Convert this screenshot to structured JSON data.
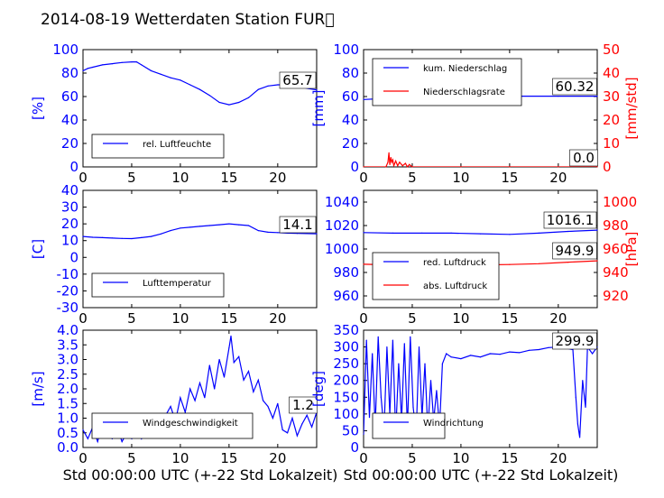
{
  "title": "2014-08-19 Wetterdaten Station FUR\u0000",
  "xlabel": "Std 00:00:00 UTC (+-22 Std Lokalzeit)",
  "colors": {
    "blue": "#0000ff",
    "red": "#ff0000",
    "black": "#000000"
  },
  "chart_data": [
    {
      "id": "humidity",
      "type": "line",
      "xlim": [
        0,
        24
      ],
      "ylim": [
        0,
        100
      ],
      "xticks": [
        0,
        5,
        10,
        15,
        20
      ],
      "yticks": [
        0,
        20,
        40,
        60,
        80,
        100
      ],
      "ylabel": "[%]",
      "legend": [
        "rel. Luftfeuchte"
      ],
      "legend_placement": "lower-left",
      "value_label": "65.7",
      "series": [
        {
          "name": "rel. Luftfeuchte",
          "color": "#0000ff",
          "x": [
            0,
            0.5,
            1,
            2,
            3,
            4,
            5,
            5.5,
            6,
            7,
            8,
            9,
            10,
            11,
            12,
            13,
            14,
            15,
            16,
            17,
            18,
            19,
            20,
            21,
            22,
            23,
            24
          ],
          "y": [
            82,
            84,
            85,
            87,
            88,
            89,
            89.5,
            89.5,
            87,
            82,
            79,
            76,
            74,
            70,
            66,
            61,
            55,
            53,
            55,
            59,
            66,
            69,
            70,
            70,
            69,
            67,
            65.7
          ]
        }
      ]
    },
    {
      "id": "precipitation",
      "type": "line",
      "xlim": [
        0,
        24
      ],
      "ylim": [
        0,
        100
      ],
      "y2lim": [
        0,
        50
      ],
      "xticks": [
        0,
        5,
        10,
        15,
        20
      ],
      "yticks": [
        0,
        20,
        40,
        60,
        80,
        100
      ],
      "y2ticks": [
        0,
        10,
        20,
        30,
        40,
        50
      ],
      "ylabel": "[mm]",
      "y2label": "[mm/std]",
      "legend": [
        "kum. Niederschlag",
        "Niederschlagsrate"
      ],
      "legend_placement": "upper-left",
      "value_labels": [
        "60.32",
        "0.0"
      ],
      "series": [
        {
          "name": "kum. Niederschlag",
          "color": "#0000ff",
          "axis": "left",
          "x": [
            0,
            2.5,
            5,
            10,
            15,
            20,
            24
          ],
          "y": [
            57.5,
            58.5,
            60.0,
            60.3,
            60.3,
            60.32,
            60.32
          ]
        },
        {
          "name": "Niederschlagsrate",
          "color": "#ff0000",
          "axis": "right",
          "x": [
            0,
            2.3,
            2.5,
            2.6,
            2.7,
            2.8,
            2.9,
            3.0,
            3.1,
            3.3,
            3.5,
            3.7,
            4.0,
            4.3,
            4.5,
            4.7,
            5.0,
            10,
            15,
            20,
            24
          ],
          "y": [
            0,
            0,
            2,
            6,
            1,
            4,
            2,
            3,
            0.5,
            2.5,
            0.5,
            2,
            0.5,
            1.5,
            0,
            1,
            0,
            0,
            0,
            0,
            0
          ]
        }
      ]
    },
    {
      "id": "temperature",
      "type": "line",
      "xlim": [
        0,
        24
      ],
      "ylim": [
        -30,
        40
      ],
      "xticks": [
        0,
        5,
        10,
        15,
        20
      ],
      "yticks": [
        -30,
        -20,
        -10,
        0,
        10,
        20,
        30,
        40
      ],
      "ylabel": "[C]",
      "legend": [
        "Lufttemperatur"
      ],
      "legend_placement": "lower-left",
      "value_label": "14.1",
      "series": [
        {
          "name": "Lufttemperatur",
          "color": "#0000ff",
          "x": [
            0,
            1,
            2,
            3,
            4,
            5,
            6,
            7,
            8,
            9,
            10,
            11,
            12,
            13,
            14,
            15,
            16,
            17,
            18,
            19,
            20,
            21,
            22,
            23,
            24
          ],
          "y": [
            12.5,
            12,
            11.8,
            11.5,
            11.3,
            11.2,
            11.8,
            12.5,
            14,
            16,
            17.5,
            18,
            18.5,
            19,
            19.5,
            20,
            19.5,
            19,
            16,
            15,
            14.8,
            14.5,
            14.3,
            14.2,
            14.1
          ]
        }
      ]
    },
    {
      "id": "pressure",
      "type": "line",
      "xlim": [
        0,
        24
      ],
      "ylim": [
        950,
        1050
      ],
      "y2lim": [
        910,
        1010
      ],
      "xticks": [
        0,
        5,
        10,
        15,
        20
      ],
      "yticks": [
        960,
        980,
        1000,
        1020,
        1040
      ],
      "y2ticks": [
        920,
        940,
        960,
        980,
        1000
      ],
      "y2label": "[hPa]",
      "legend": [
        "red. Luftdruck",
        "abs. Luftdruck"
      ],
      "legend_placement": "lower-left",
      "value_labels": [
        "1016.1",
        "949.9"
      ],
      "series": [
        {
          "name": "red. Luftdruck",
          "color": "#0000ff",
          "axis": "left",
          "x": [
            0,
            3,
            6,
            9,
            12,
            15,
            18,
            21,
            24
          ],
          "y": [
            1014,
            1013.5,
            1013.5,
            1013.5,
            1013,
            1012.5,
            1013.5,
            1015,
            1016.1
          ]
        },
        {
          "name": "abs. Luftdruck",
          "color": "#ff0000",
          "axis": "right",
          "x": [
            0,
            3,
            6,
            9,
            12,
            15,
            18,
            21,
            24
          ],
          "y": [
            947,
            946.5,
            946.5,
            946.5,
            946.5,
            946.8,
            947.5,
            948.8,
            949.9
          ]
        }
      ]
    },
    {
      "id": "windspeed",
      "type": "line",
      "xlim": [
        0,
        24
      ],
      "ylim": [
        0,
        4
      ],
      "xticks": [
        0,
        5,
        10,
        15,
        20
      ],
      "yticks": [
        0,
        0.5,
        1,
        1.5,
        2,
        2.5,
        3,
        3.5,
        4
      ],
      "ytick_labels": [
        "0.0",
        "0.5",
        "1.0",
        "1.5",
        "2.0",
        "2.5",
        "3.0",
        "3.5",
        "4.0"
      ],
      "ylabel": "[m/s]",
      "legend": [
        "Windgeschwindigkeit"
      ],
      "legend_placement": "lower-left",
      "value_label": "1.2",
      "series": [
        {
          "name": "Windgeschwindigkeit",
          "color": "#0000ff",
          "x": [
            0,
            0.5,
            1,
            1.5,
            2,
            2.5,
            3,
            3.5,
            4,
            4.5,
            5,
            5.5,
            6,
            6.5,
            7,
            7.5,
            8,
            8.5,
            9,
            9.5,
            10,
            10.5,
            11,
            11.5,
            12,
            12.5,
            13,
            13.5,
            14,
            14.5,
            15,
            15.2,
            15.5,
            16,
            16.5,
            17,
            17.5,
            18,
            18.5,
            19,
            19.5,
            20,
            20.5,
            21,
            21.5,
            22,
            22.5,
            23,
            23.5,
            24
          ],
          "y": [
            0.6,
            0.3,
            0.7,
            0.2,
            0.8,
            0.4,
            0.3,
            0.7,
            0.2,
            0.5,
            0.3,
            0.6,
            0.3,
            0.8,
            0.4,
            0.9,
            0.7,
            1.1,
            1.4,
            0.9,
            1.7,
            1.2,
            2.0,
            1.6,
            2.2,
            1.7,
            2.8,
            2.0,
            3.0,
            2.4,
            3.4,
            3.8,
            2.9,
            3.1,
            2.3,
            2.6,
            1.9,
            2.3,
            1.6,
            1.4,
            1.0,
            1.5,
            0.6,
            0.5,
            1.0,
            0.4,
            0.8,
            1.1,
            0.7,
            1.2
          ]
        }
      ]
    },
    {
      "id": "winddirection",
      "type": "line",
      "xlim": [
        0,
        24
      ],
      "ylim": [
        0,
        350
      ],
      "xticks": [
        0,
        5,
        10,
        15,
        20
      ],
      "yticks": [
        0,
        50,
        100,
        150,
        200,
        250,
        300,
        350
      ],
      "ylabel": "[deg]",
      "legend": [
        "Windrichtung"
      ],
      "legend_placement": "lower-left",
      "value_label": "299.9",
      "series": [
        {
          "name": "Windrichtung",
          "color": "#0000ff",
          "x": [
            0,
            0.3,
            0.6,
            0.9,
            1.2,
            1.5,
            1.8,
            2.1,
            2.4,
            2.7,
            3.0,
            3.3,
            3.6,
            3.9,
            4.2,
            4.5,
            4.8,
            5.1,
            5.4,
            5.7,
            6.0,
            6.3,
            6.6,
            6.9,
            7.2,
            7.5,
            7.8,
            8.1,
            8.5,
            9,
            10,
            11,
            12,
            13,
            14,
            15,
            16,
            17,
            18,
            19,
            20,
            21,
            21.5,
            21.8,
            22.0,
            22.2,
            22.5,
            22.8,
            23,
            23.5,
            24
          ],
          "y": [
            40,
            320,
            90,
            280,
            60,
            330,
            150,
            50,
            300,
            100,
            320,
            40,
            250,
            80,
            310,
            60,
            330,
            120,
            40,
            300,
            90,
            250,
            50,
            200,
            80,
            170,
            60,
            250,
            280,
            270,
            265,
            275,
            270,
            280,
            278,
            285,
            283,
            290,
            292,
            298,
            300,
            295,
            292,
            150,
            70,
            30,
            200,
            120,
            300,
            280,
            299.9
          ]
        }
      ]
    }
  ]
}
